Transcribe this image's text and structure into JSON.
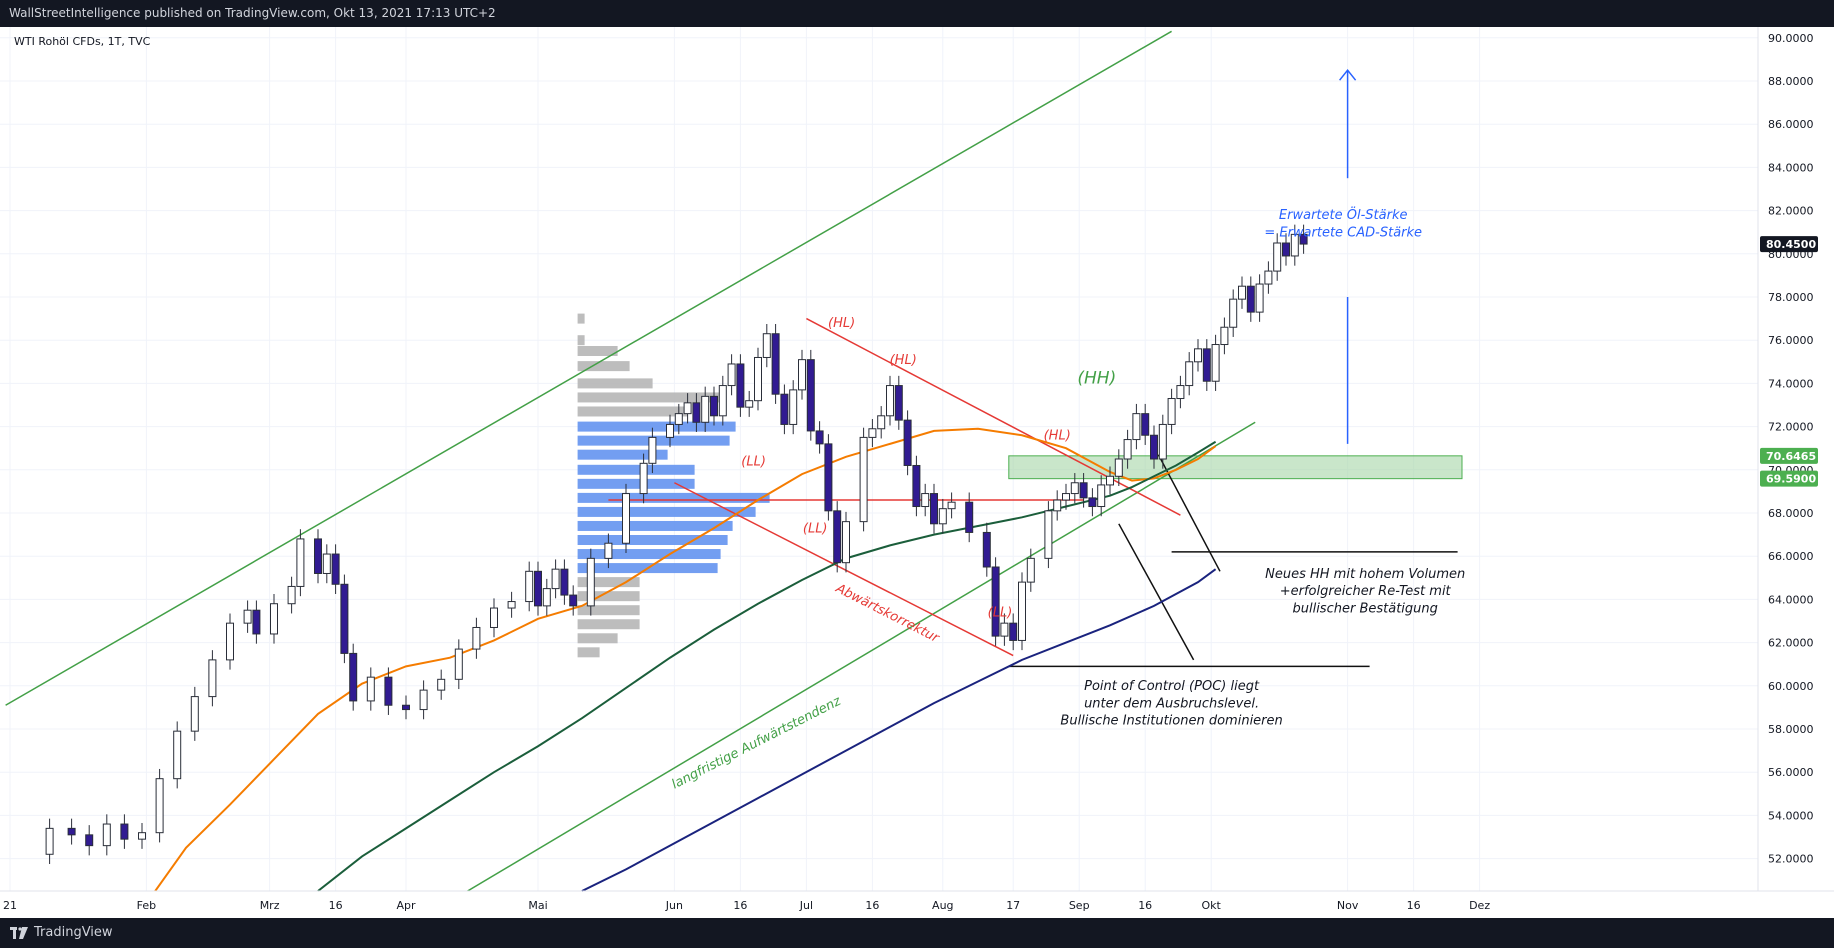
{
  "header": {
    "published": "WallStreetIntelligence published on TradingView.com, Okt 13, 2021 17:13 UTC+2"
  },
  "footer": {
    "brand": "TradingView"
  },
  "chart_data": {
    "type": "candlestick",
    "symbol": "WTI Rohöl CFDs, 1T, TVC",
    "ylim": [
      50.5,
      90.5
    ],
    "y_ticks": [
      "52.0000",
      "54.0000",
      "56.0000",
      "58.0000",
      "60.0000",
      "62.0000",
      "64.0000",
      "66.0000",
      "68.0000",
      "70.0000",
      "72.0000",
      "74.0000",
      "76.0000",
      "78.0000",
      "80.0000",
      "82.0000",
      "84.0000",
      "86.0000",
      "88.0000",
      "90.0000"
    ],
    "x_ticks": [
      {
        "label": "21",
        "day": 0
      },
      {
        "label": "Feb",
        "day": 31
      },
      {
        "label": "Mrz",
        "day": 59
      },
      {
        "label": "16",
        "day": 74
      },
      {
        "label": "Apr",
        "day": 90
      },
      {
        "label": "Mai",
        "day": 120
      },
      {
        "label": "Jun",
        "day": 151
      },
      {
        "label": "16",
        "day": 166
      },
      {
        "label": "Jul",
        "day": 181
      },
      {
        "label": "16",
        "day": 196
      },
      {
        "label": "Aug",
        "day": 212
      },
      {
        "label": "17",
        "day": 228
      },
      {
        "label": "Sep",
        "day": 243
      },
      {
        "label": "16",
        "day": 258
      },
      {
        "label": "Okt",
        "day": 273
      },
      {
        "label": "Nov",
        "day": 304
      },
      {
        "label": "16",
        "day": 319
      },
      {
        "label": "Dez",
        "day": 334
      }
    ],
    "price_labels": [
      {
        "text": "80.4500",
        "value": 80.45,
        "color": "#131722"
      },
      {
        "text": "70.6465",
        "value": 70.6465,
        "color": "#4caf50"
      },
      {
        "text": "69.5900",
        "value": 69.59,
        "color": "#4caf50"
      }
    ],
    "close_points": [
      [
        5,
        52.2
      ],
      [
        9,
        53.4
      ],
      [
        14,
        53.1
      ],
      [
        18,
        52.6
      ],
      [
        22,
        53.6
      ],
      [
        26,
        52.9
      ],
      [
        30,
        53.2
      ],
      [
        34,
        55.7
      ],
      [
        38,
        57.9
      ],
      [
        42,
        59.5
      ],
      [
        46,
        61.2
      ],
      [
        50,
        62.9
      ],
      [
        54,
        63.5
      ],
      [
        56,
        62.4
      ],
      [
        60,
        63.8
      ],
      [
        64,
        64.6
      ],
      [
        66,
        66.8
      ],
      [
        70,
        65.2
      ],
      [
        72,
        66.1
      ],
      [
        74,
        64.7
      ],
      [
        76,
        61.5
      ],
      [
        78,
        59.3
      ],
      [
        82,
        60.4
      ],
      [
        86,
        59.1
      ],
      [
        90,
        58.9
      ],
      [
        94,
        59.8
      ],
      [
        98,
        60.3
      ],
      [
        102,
        61.7
      ],
      [
        106,
        62.7
      ],
      [
        110,
        63.6
      ],
      [
        114,
        63.9
      ],
      [
        118,
        65.3
      ],
      [
        120,
        63.7
      ],
      [
        122,
        64.5
      ],
      [
        124,
        65.4
      ],
      [
        126,
        64.2
      ],
      [
        128,
        63.7
      ],
      [
        132,
        65.9
      ],
      [
        136,
        66.6
      ],
      [
        140,
        68.9
      ],
      [
        144,
        70.3
      ],
      [
        146,
        71.5
      ],
      [
        150,
        72.1
      ],
      [
        152,
        72.6
      ],
      [
        154,
        73.1
      ],
      [
        156,
        72.2
      ],
      [
        158,
        73.4
      ],
      [
        160,
        72.5
      ],
      [
        162,
        73.9
      ],
      [
        164,
        74.9
      ],
      [
        166,
        72.9
      ],
      [
        168,
        73.2
      ],
      [
        170,
        75.2
      ],
      [
        172,
        76.3
      ],
      [
        174,
        73.5
      ],
      [
        176,
        72.1
      ],
      [
        178,
        73.7
      ],
      [
        180,
        75.1
      ],
      [
        182,
        71.8
      ],
      [
        184,
        71.2
      ],
      [
        186,
        68.1
      ],
      [
        188,
        65.7
      ],
      [
        190,
        67.6
      ],
      [
        194,
        71.5
      ],
      [
        196,
        71.9
      ],
      [
        198,
        72.5
      ],
      [
        200,
        73.9
      ],
      [
        202,
        72.3
      ],
      [
        204,
        70.2
      ],
      [
        206,
        68.3
      ],
      [
        208,
        68.9
      ],
      [
        210,
        67.5
      ],
      [
        212,
        68.2
      ],
      [
        214,
        68.5
      ],
      [
        218,
        67.1
      ],
      [
        222,
        65.5
      ],
      [
        224,
        62.3
      ],
      [
        226,
        62.9
      ],
      [
        228,
        62.1
      ],
      [
        230,
        64.8
      ],
      [
        232,
        65.9
      ],
      [
        236,
        68.1
      ],
      [
        238,
        68.6
      ],
      [
        240,
        68.9
      ],
      [
        242,
        69.4
      ],
      [
        244,
        68.7
      ],
      [
        246,
        68.3
      ],
      [
        248,
        69.3
      ],
      [
        250,
        69.7
      ],
      [
        252,
        70.5
      ],
      [
        254,
        71.4
      ],
      [
        256,
        72.6
      ],
      [
        258,
        71.6
      ],
      [
        260,
        70.5
      ],
      [
        262,
        72.1
      ],
      [
        264,
        73.3
      ],
      [
        266,
        73.9
      ],
      [
        268,
        75.0
      ],
      [
        270,
        75.6
      ],
      [
        272,
        74.1
      ],
      [
        274,
        75.8
      ],
      [
        276,
        76.6
      ],
      [
        278,
        77.9
      ],
      [
        280,
        78.5
      ],
      [
        282,
        77.3
      ],
      [
        284,
        78.6
      ],
      [
        286,
        79.2
      ],
      [
        288,
        80.5
      ],
      [
        290,
        79.9
      ],
      [
        292,
        80.9
      ],
      [
        294,
        80.45
      ]
    ],
    "series": [
      {
        "name": "",
        "color": "#f57c00",
        "points": [
          [
            33,
            50.5
          ],
          [
            40,
            52.5
          ],
          [
            50,
            54.5
          ],
          [
            60,
            56.6
          ],
          [
            70,
            58.7
          ],
          [
            80,
            60.1
          ],
          [
            90,
            60.9
          ],
          [
            100,
            61.3
          ],
          [
            110,
            62.1
          ],
          [
            120,
            63.1
          ],
          [
            130,
            63.7
          ],
          [
            140,
            64.8
          ],
          [
            150,
            66.1
          ],
          [
            160,
            67.3
          ],
          [
            170,
            68.6
          ],
          [
            180,
            69.8
          ],
          [
            190,
            70.6
          ],
          [
            200,
            71.2
          ],
          [
            210,
            71.8
          ],
          [
            220,
            71.9
          ],
          [
            230,
            71.6
          ],
          [
            240,
            71.0
          ],
          [
            250,
            69.9
          ],
          [
            255,
            69.5
          ],
          [
            260,
            69.6
          ],
          [
            265,
            70.0
          ],
          [
            270,
            70.5
          ],
          [
            274,
            71.1
          ]
        ]
      },
      {
        "name": "",
        "color": "#1b5e3b",
        "points": [
          [
            70,
            50.5
          ],
          [
            80,
            52.1
          ],
          [
            90,
            53.4
          ],
          [
            100,
            54.7
          ],
          [
            110,
            56.0
          ],
          [
            120,
            57.2
          ],
          [
            130,
            58.5
          ],
          [
            140,
            59.9
          ],
          [
            150,
            61.3
          ],
          [
            160,
            62.6
          ],
          [
            170,
            63.8
          ],
          [
            180,
            64.9
          ],
          [
            190,
            65.9
          ],
          [
            200,
            66.5
          ],
          [
            210,
            67.0
          ],
          [
            220,
            67.4
          ],
          [
            230,
            67.8
          ],
          [
            240,
            68.3
          ],
          [
            250,
            68.8
          ],
          [
            255,
            69.2
          ],
          [
            260,
            69.7
          ],
          [
            265,
            70.2
          ],
          [
            270,
            70.8
          ],
          [
            274,
            71.3
          ]
        ]
      },
      {
        "name": "",
        "color": "#1a237e",
        "points": [
          [
            130,
            50.5
          ],
          [
            140,
            51.5
          ],
          [
            150,
            52.6
          ],
          [
            160,
            53.7
          ],
          [
            170,
            54.8
          ],
          [
            180,
            55.9
          ],
          [
            190,
            57.0
          ],
          [
            200,
            58.1
          ],
          [
            210,
            59.2
          ],
          [
            220,
            60.2
          ],
          [
            230,
            61.2
          ],
          [
            240,
            62.0
          ],
          [
            250,
            62.8
          ],
          [
            260,
            63.7
          ],
          [
            270,
            64.8
          ],
          [
            274,
            65.4
          ]
        ]
      }
    ],
    "volume_profile": {
      "bars": [
        {
          "value": 77.0,
          "width": 7,
          "color": "#b2b2b2"
        },
        {
          "value": 76.0,
          "width": 7,
          "color": "#b2b2b2"
        },
        {
          "value": 75.5,
          "width": 40,
          "color": "#b2b2b2"
        },
        {
          "value": 74.8,
          "width": 52,
          "color": "#b2b2b2"
        },
        {
          "value": 74.0,
          "width": 75,
          "color": "#b2b2b2"
        },
        {
          "value": 73.35,
          "width": 148,
          "color": "#b2b2b2"
        },
        {
          "value": 72.7,
          "width": 110,
          "color": "#b2b2b2"
        },
        {
          "value": 72.0,
          "width": 158,
          "color": "#5b8def"
        },
        {
          "value": 71.35,
          "width": 152,
          "color": "#5b8def"
        },
        {
          "value": 70.7,
          "width": 90,
          "color": "#5b8def"
        },
        {
          "value": 70.0,
          "width": 117,
          "color": "#5b8def"
        },
        {
          "value": 69.35,
          "width": 117,
          "color": "#5b8def"
        },
        {
          "value": 68.7,
          "width": 192,
          "color": "#5b8def"
        },
        {
          "value": 68.05,
          "width": 178,
          "color": "#5b8def"
        },
        {
          "value": 67.4,
          "width": 155,
          "color": "#5b8def"
        },
        {
          "value": 66.75,
          "width": 150,
          "color": "#5b8def"
        },
        {
          "value": 66.1,
          "width": 143,
          "color": "#5b8def"
        },
        {
          "value": 65.45,
          "width": 140,
          "color": "#5b8def"
        },
        {
          "value": 64.8,
          "width": 62,
          "color": "#b2b2b2"
        },
        {
          "value": 64.15,
          "width": 62,
          "color": "#b2b2b2"
        },
        {
          "value": 63.5,
          "width": 62,
          "color": "#b2b2b2"
        },
        {
          "value": 62.85,
          "width": 62,
          "color": "#b2b2b2"
        },
        {
          "value": 62.2,
          "width": 40,
          "color": "#b2b2b2"
        },
        {
          "value": 61.55,
          "width": 22,
          "color": "#b2b2b2"
        }
      ]
    },
    "annotations": [
      {
        "type": "line",
        "color": "#43a047",
        "from": [
          -1,
          59.1
        ],
        "to": [
          264,
          90.3
        ]
      },
      {
        "type": "line",
        "color": "#43a047",
        "from": [
          104,
          50.5
        ],
        "to": [
          283,
          72.2
        ]
      },
      {
        "type": "line",
        "color": "#e53935",
        "from": [
          181,
          77.0
        ],
        "to": [
          266,
          67.9
        ]
      },
      {
        "type": "line",
        "color": "#e53935",
        "from": [
          151,
          69.4
        ],
        "to": [
          228,
          61.4
        ]
      },
      {
        "type": "line",
        "color": "#e53935",
        "from": [
          136,
          68.6
        ],
        "to": [
          244,
          68.6
        ]
      },
      {
        "type": "line",
        "color": "#111111",
        "from": [
          264,
          66.2
        ],
        "to": [
          329,
          66.2
        ]
      },
      {
        "type": "line",
        "color": "#111111",
        "from": [
          227,
          60.9
        ],
        "to": [
          309,
          60.9
        ]
      },
      {
        "type": "line",
        "color": "#111111",
        "from": [
          261,
          70.7
        ],
        "to": [
          275,
          65.3
        ]
      },
      {
        "type": "line",
        "color": "#111111",
        "from": [
          252,
          67.5
        ],
        "to": [
          269,
          61.2
        ]
      },
      {
        "type": "arrow",
        "color": "#2962ff",
        "from": [
          304,
          83.5
        ],
        "to": [
          304,
          88.5
        ]
      },
      {
        "type": "line",
        "color": "#2962ff",
        "from": [
          304,
          71.2
        ],
        "to": [
          304,
          78.0
        ]
      }
    ],
    "zone": {
      "from_day": 227,
      "to_day": 330,
      "low": 69.59,
      "high": 70.6465,
      "color": "#a5d6a7"
    },
    "text_labels": [
      {
        "text": "(HL)",
        "day": 189,
        "value": 76.6,
        "color": "#e53935"
      },
      {
        "text": "(HL)",
        "day": 203,
        "value": 74.9,
        "color": "#e53935"
      },
      {
        "text": "(HL)",
        "day": 238,
        "value": 71.4,
        "color": "#e53935"
      },
      {
        "text": "(LL)",
        "day": 169,
        "value": 70.2,
        "color": "#e53935"
      },
      {
        "text": "(LL)",
        "day": 183,
        "value": 67.1,
        "color": "#e53935"
      },
      {
        "text": "(LL)",
        "day": 225,
        "value": 63.2,
        "color": "#e53935"
      },
      {
        "text": "(HH)",
        "day": 247,
        "value": 74.0,
        "color": "#43a047"
      },
      {
        "text": "Abwärtskorrektur",
        "day": 199,
        "value": 63.2,
        "color": "#e53935",
        "rotate": 27
      },
      {
        "text": "langfristige Aufwärtstendenz",
        "day": 170,
        "value": 57.2,
        "color": "#43a047",
        "rotate": -27
      },
      {
        "text": "Erwartete Öl-Stärke",
        "day": 303,
        "value": 81.6,
        "color": "#2962ff"
      },
      {
        "text": "= Erwartete CAD-Stärke",
        "day": 303,
        "value": 80.8,
        "color": "#2962ff"
      },
      {
        "text": "Neues HH mit hohem Volumen",
        "day": 308,
        "value": 65.0,
        "color": "#131722"
      },
      {
        "text": "+erfolgreicher Re-Test mit",
        "day": 308,
        "value": 64.2,
        "color": "#131722"
      },
      {
        "text": "bullischer Bestätigung",
        "day": 308,
        "value": 63.4,
        "color": "#131722"
      },
      {
        "text": "Point of Control (POC) liegt",
        "day": 264,
        "value": 59.8,
        "color": "#131722"
      },
      {
        "text": "unter dem Ausbruchslevel.",
        "day": 264,
        "value": 59.0,
        "color": "#131722"
      },
      {
        "text": "Bullische Institutionen dominieren",
        "day": 264,
        "value": 58.2,
        "color": "#131722"
      }
    ]
  }
}
